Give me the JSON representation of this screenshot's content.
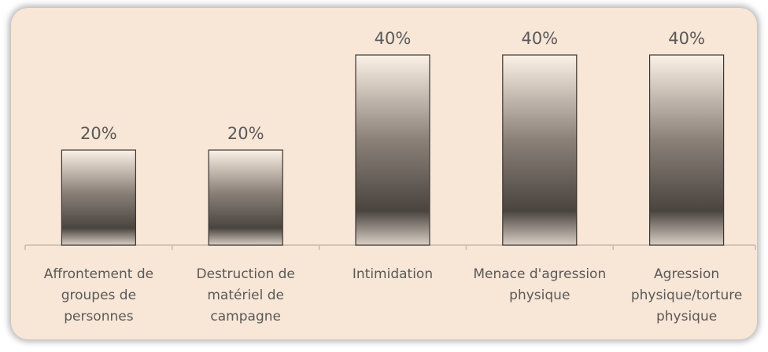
{
  "chart_data": {
    "type": "bar",
    "categories": [
      "Affrontement de groupes de personnes",
      "Destruction de matériel de campagne",
      "Intimidation",
      "Menace d'agression physique",
      "Agression physique/torture physique"
    ],
    "values": [
      20,
      20,
      40,
      40,
      40
    ],
    "value_labels": [
      "20%",
      "20%",
      "40%",
      "40%",
      "40%"
    ],
    "ylim": [
      0,
      40
    ]
  }
}
